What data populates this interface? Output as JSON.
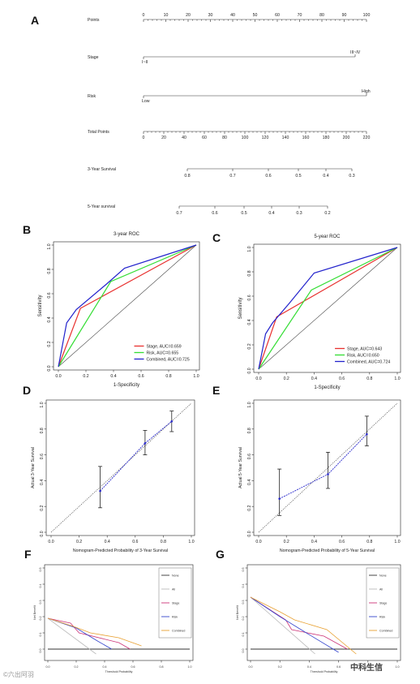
{
  "panels": {
    "A": "A",
    "B": "B",
    "C": "C",
    "D": "D",
    "E": "E",
    "F": "F",
    "G": "G"
  },
  "nomogram": {
    "rows": [
      {
        "label": "Points",
        "type": "scale",
        "ticks": [
          "0",
          "10",
          "20",
          "30",
          "40",
          "50",
          "60",
          "70",
          "80",
          "90",
          "100"
        ]
      },
      {
        "label": "Stage",
        "type": "categorical",
        "left": "I~II",
        "right": "III~IV"
      },
      {
        "label": "Risk",
        "type": "categorical",
        "left": "Low",
        "right": "High"
      },
      {
        "label": "Total Points",
        "type": "scale",
        "ticks": [
          "0",
          "20",
          "40",
          "60",
          "80",
          "100",
          "120",
          "140",
          "160",
          "180",
          "200",
          "220"
        ]
      },
      {
        "label": "3-Year Survival",
        "type": "prob",
        "ticks": [
          "0.8",
          "0.7",
          "0.6",
          "0.5",
          "0.4",
          "0.3"
        ]
      },
      {
        "label": "5-Year survival",
        "type": "prob",
        "ticks": [
          "0.7",
          "0.6",
          "0.5",
          "0.4",
          "0.3",
          "0.2"
        ]
      }
    ]
  },
  "chart_data": [
    {
      "id": "B",
      "type": "line",
      "title": "3-year ROC",
      "xlabel": "1-Specificity",
      "ylabel": "Sensitivity",
      "xlim": [
        0,
        1
      ],
      "ylim": [
        0,
        1
      ],
      "ticks": [
        "0.0",
        "0.2",
        "0.4",
        "0.6",
        "0.8",
        "1.0"
      ],
      "legend_position": "bottom-right",
      "series": [
        {
          "name": "Stage, AUC=0.659",
          "color": "#e8312f",
          "x": [
            0,
            0.16,
            1.0
          ],
          "y": [
            0,
            0.48,
            1.0
          ]
        },
        {
          "name": "Risk, AUC=0.655",
          "color": "#33dd33",
          "x": [
            0,
            0.38,
            1.0
          ],
          "y": [
            0,
            0.7,
            1.0
          ]
        },
        {
          "name": "Combined, AUC=0.725",
          "color": "#2222cc",
          "x": [
            0,
            0.06,
            0.13,
            0.35,
            0.48,
            1.0
          ],
          "y": [
            0,
            0.36,
            0.47,
            0.68,
            0.81,
            1.0
          ]
        }
      ]
    },
    {
      "id": "C",
      "type": "line",
      "title": "5-year ROC",
      "xlabel": "1-Specificity",
      "ylabel": "Sensitivity",
      "xlim": [
        0,
        1
      ],
      "ylim": [
        0,
        1
      ],
      "ticks": [
        "0.0",
        "0.2",
        "0.4",
        "0.6",
        "0.8",
        "1.0"
      ],
      "legend_position": "bottom-right",
      "series": [
        {
          "name": "Stage, AUC=0.643",
          "color": "#e8312f",
          "x": [
            0,
            0.13,
            1.0
          ],
          "y": [
            0,
            0.43,
            1.0
          ]
        },
        {
          "name": "Risk, AUC=0.650",
          "color": "#33dd33",
          "x": [
            0,
            0.38,
            1.0
          ],
          "y": [
            0,
            0.65,
            1.0
          ]
        },
        {
          "name": "Combined, AUC=0.724",
          "color": "#2222cc",
          "x": [
            0,
            0.05,
            0.1,
            0.22,
            0.4,
            1.0
          ],
          "y": [
            0,
            0.29,
            0.38,
            0.54,
            0.79,
            1.0
          ]
        }
      ]
    },
    {
      "id": "D",
      "type": "scatter",
      "xlabel": "Nomogram-Predicted Probability of 3-Year Survival",
      "ylabel": "Actual 3-Year Survival",
      "xlim": [
        0,
        1
      ],
      "ylim": [
        0,
        1
      ],
      "ticks": [
        "0.0",
        "0.2",
        "0.4",
        "0.6",
        "0.8",
        "1.0"
      ],
      "points": [
        {
          "x": 0.35,
          "y": 0.32,
          "lo": 0.19,
          "hi": 0.51
        },
        {
          "x": 0.67,
          "y": 0.69,
          "lo": 0.6,
          "hi": 0.79
        },
        {
          "x": 0.86,
          "y": 0.86,
          "lo": 0.78,
          "hi": 0.94
        }
      ]
    },
    {
      "id": "E",
      "type": "scatter",
      "xlabel": "Nomogram-Predicted Probability of 5-Year Survival",
      "ylabel": "Actual 5-Year Survival",
      "xlim": [
        0,
        1
      ],
      "ylim": [
        0,
        1
      ],
      "ticks": [
        "0.0",
        "0.2",
        "0.4",
        "0.6",
        "0.8",
        "1.0"
      ],
      "points": [
        {
          "x": 0.15,
          "y": 0.26,
          "lo": 0.13,
          "hi": 0.49
        },
        {
          "x": 0.5,
          "y": 0.45,
          "lo": 0.34,
          "hi": 0.62
        },
        {
          "x": 0.78,
          "y": 0.76,
          "lo": 0.67,
          "hi": 0.9
        }
      ]
    },
    {
      "id": "F",
      "type": "line",
      "xlabel": "Threshold Probability",
      "ylabel": "Net Benefit",
      "xlim": [
        0,
        1
      ],
      "ylim": [
        -0.05,
        0.5
      ],
      "xticks": [
        "0.0",
        "0.2",
        "0.4",
        "0.6",
        "0.8",
        "1.0"
      ],
      "yticks": [
        "0.0",
        "0.1",
        "0.2",
        "0.3",
        "0.4",
        "0.5"
      ],
      "legend_position": "top-right",
      "series": [
        {
          "name": "None",
          "color": "#333333",
          "x": [
            0,
            1.0
          ],
          "y": [
            0,
            0
          ]
        },
        {
          "name": "All",
          "color": "#bbbbbb",
          "x": [
            0,
            0.34
          ],
          "y": [
            0.19,
            -0.03
          ]
        },
        {
          "name": "Stage",
          "color": "#cc3377",
          "x": [
            0,
            0.16,
            0.22,
            0.5,
            0.58
          ],
          "y": [
            0.19,
            0.16,
            0.1,
            0.04,
            0.0
          ]
        },
        {
          "name": "Risk",
          "color": "#3344cc",
          "x": [
            0,
            0.2,
            0.35,
            0.45
          ],
          "y": [
            0.19,
            0.13,
            0.05,
            0.0
          ]
        },
        {
          "name": "Combined",
          "color": "#e8a030",
          "x": [
            0,
            0.18,
            0.3,
            0.5,
            0.66
          ],
          "y": [
            0.19,
            0.14,
            0.1,
            0.07,
            0.02
          ]
        }
      ]
    },
    {
      "id": "G",
      "type": "line",
      "xlabel": "Threshold Probability",
      "ylabel": "Net Benefit",
      "xlim": [
        0,
        1
      ],
      "ylim": [
        -0.05,
        0.5
      ],
      "xticks": [
        "0.0",
        "0.2",
        "0.4",
        "0.6",
        "0.8",
        "1.0"
      ],
      "yticks": [
        "0.0",
        "0.1",
        "0.2",
        "0.3",
        "0.4",
        "0.5"
      ],
      "legend_position": "top-right",
      "series": [
        {
          "name": "None",
          "color": "#333333",
          "x": [
            0,
            1.0
          ],
          "y": [
            0,
            0
          ]
        },
        {
          "name": "All",
          "color": "#bbbbbb",
          "x": [
            0,
            0.44
          ],
          "y": [
            0.32,
            -0.03
          ]
        },
        {
          "name": "Stage",
          "color": "#cc3377",
          "x": [
            0,
            0.24,
            0.28,
            0.5,
            0.66
          ],
          "y": [
            0.32,
            0.18,
            0.12,
            0.08,
            0.0
          ]
        },
        {
          "name": "Risk",
          "color": "#3344cc",
          "x": [
            0,
            0.2,
            0.38,
            0.6
          ],
          "y": [
            0.32,
            0.2,
            0.1,
            -0.02
          ]
        },
        {
          "name": "Combined",
          "color": "#e8a030",
          "x": [
            0,
            0.2,
            0.3,
            0.52,
            0.72
          ],
          "y": [
            0.32,
            0.23,
            0.18,
            0.12,
            -0.03
          ]
        }
      ]
    }
  ],
  "watermark": {
    "left": "©六出阿羽",
    "right": "中科生信"
  }
}
